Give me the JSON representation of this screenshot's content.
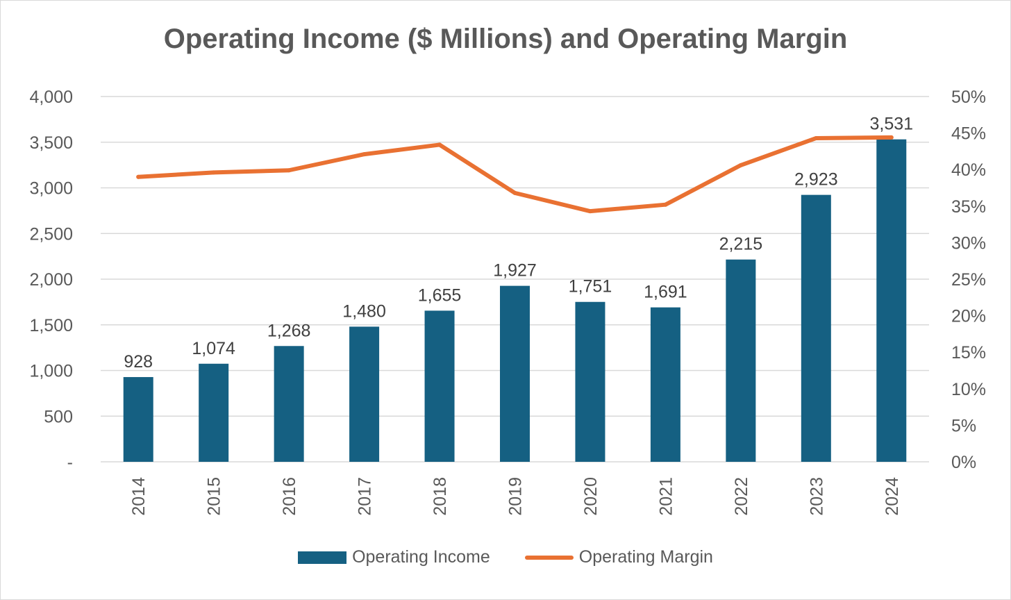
{
  "chart_data": {
    "type": "bar",
    "title": "Operating Income ($ Millions) and Operating Margin",
    "categories": [
      "2014",
      "2015",
      "2016",
      "2017",
      "2018",
      "2019",
      "2020",
      "2021",
      "2022",
      "2023",
      "2024"
    ],
    "series": [
      {
        "name": "Operating Income",
        "type": "bar",
        "axis": "left",
        "color": "#156082",
        "values": [
          928,
          1074,
          1268,
          1480,
          1655,
          1927,
          1751,
          1691,
          2215,
          2923,
          3531
        ],
        "data_labels": [
          "928",
          "1,074",
          "1,268",
          "1,480",
          "1,655",
          "1,927",
          "1,751",
          "1,691",
          "2,215",
          "2,923",
          "3,531"
        ]
      },
      {
        "name": "Operating Margin",
        "type": "line",
        "axis": "right",
        "color": "#e97132",
        "values": [
          0.39,
          0.396,
          0.399,
          0.421,
          0.434,
          0.368,
          0.343,
          0.352,
          0.406,
          0.443,
          0.444
        ]
      }
    ],
    "y_left": {
      "min": 0,
      "max": 4000,
      "ticks": [
        0,
        500,
        1000,
        1500,
        2000,
        2500,
        3000,
        3500,
        4000
      ],
      "tick_labels": [
        "-",
        "500",
        "1,000",
        "1,500",
        "2,000",
        "2,500",
        "3,000",
        "3,500",
        "4,000"
      ]
    },
    "y_right": {
      "min": 0,
      "max": 0.5,
      "ticks": [
        0,
        0.05,
        0.1,
        0.15,
        0.2,
        0.25,
        0.3,
        0.35,
        0.4,
        0.45,
        0.5
      ],
      "tick_labels": [
        "0%",
        "5%",
        "10%",
        "15%",
        "20%",
        "25%",
        "30%",
        "35%",
        "40%",
        "45%",
        "50%"
      ]
    },
    "grid": true,
    "legend_position": "bottom"
  }
}
